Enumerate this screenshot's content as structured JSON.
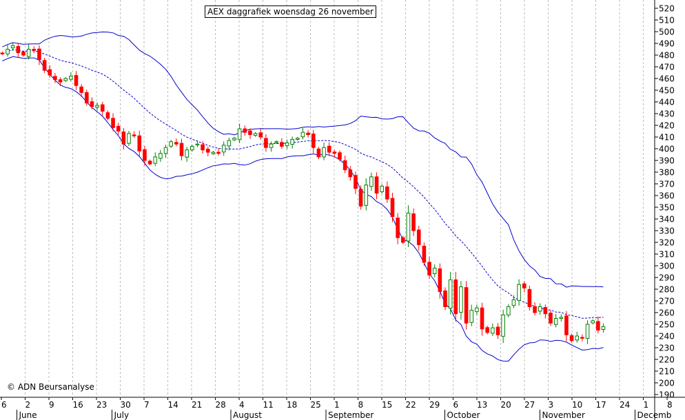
{
  "title": "AEX daggrafiek woensdag 26 november",
  "copyright": "© ADN Beursanalyse",
  "colors": {
    "up": "#008000",
    "down": "#ff0000",
    "band": "#0000cc",
    "grid": "#bbbbbb"
  },
  "chart_data": {
    "type": "candlestick",
    "ylim": [
      185,
      525
    ],
    "y_ticks": [
      190,
      200,
      210,
      220,
      230,
      240,
      250,
      260,
      270,
      280,
      290,
      300,
      310,
      320,
      330,
      340,
      350,
      360,
      370,
      380,
      390,
      400,
      410,
      420,
      430,
      440,
      450,
      460,
      470,
      480,
      490,
      500,
      510,
      520
    ],
    "day_ticks": [
      "6",
      "2",
      "9",
      "16",
      "23",
      "30",
      "7",
      "14",
      "21",
      "28",
      "4",
      "11",
      "18",
      "25",
      "1",
      "8",
      "15",
      "22",
      "29",
      "6",
      "13",
      "20",
      "27",
      "3",
      "10",
      "17",
      "24",
      "1",
      "8"
    ],
    "months": [
      "June",
      "July",
      "August",
      "September",
      "October",
      "November",
      "Decemb"
    ],
    "series": [
      {
        "name": "AEX",
        "closes": [
          481,
          485,
          488,
          482,
          480,
          485,
          484,
          476,
          467,
          463,
          459,
          457,
          460,
          462,
          454,
          448,
          439,
          436,
          437,
          432,
          426,
          418,
          415,
          404,
          413,
          411,
          398,
          390,
          387,
          393,
          396,
          401,
          406,
          404,
          394,
          399,
          402,
          404,
          399,
          397,
          397,
          396,
          403,
          407,
          409,
          417,
          414,
          412,
          413,
          410,
          401,
          404,
          406,
          402,
          405,
          408,
          409,
          414,
          412,
          401,
          393,
          401,
          397,
          396,
          391,
          382,
          376,
          366,
          351,
          369,
          376,
          362,
          368,
          357,
          342,
          324,
          320,
          345,
          330,
          318,
          303,
          292,
          298,
          278,
          265,
          288,
          259,
          282,
          251,
          262,
          264,
          246,
          243,
          247,
          241,
          258,
          265,
          271,
          284,
          281,
          265,
          260,
          265,
          259,
          251,
          255,
          256,
          241,
          236,
          240,
          238,
          250,
          253,
          245,
          248
        ]
      }
    ]
  }
}
